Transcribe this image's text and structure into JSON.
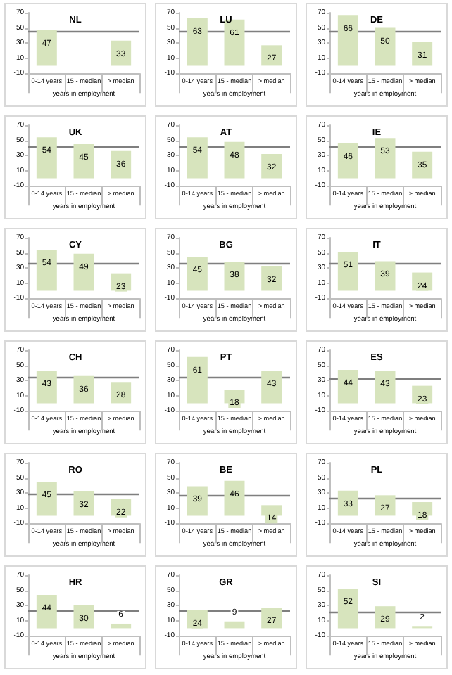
{
  "chart_data": [
    {
      "type": "bar",
      "title": "NL",
      "xlabel": "years in employment",
      "categories": [
        "0-14 years",
        "15 - median",
        "> median"
      ],
      "values": [
        47,
        null,
        33
      ],
      "color": "#d7e4bd",
      "ylim": [
        -10,
        70
      ],
      "yticks": [
        -10,
        10,
        30,
        50,
        70
      ],
      "data_labels": true,
      "ref_lines": [
        {
          "axis": "y",
          "value": 45,
          "color": "#7f7f7f"
        }
      ]
    },
    {
      "type": "bar",
      "title": "LU",
      "xlabel": "years in employment",
      "categories": [
        "0-14 years",
        "15 - median",
        "> median"
      ],
      "values": [
        63,
        61,
        27
      ],
      "color": "#d7e4bd",
      "ylim": [
        -10,
        70
      ],
      "yticks": [
        -10,
        10,
        30,
        50,
        70
      ],
      "data_labels": true,
      "ref_lines": [
        {
          "axis": "y",
          "value": 45,
          "color": "#7f7f7f"
        }
      ]
    },
    {
      "type": "bar",
      "title": "DE",
      "xlabel": "years in employment",
      "categories": [
        "0-14 years",
        "15 - median",
        "> median"
      ],
      "values": [
        66,
        50,
        31
      ],
      "color": "#d7e4bd",
      "ylim": [
        -10,
        70
      ],
      "yticks": [
        -10,
        10,
        30,
        50,
        70
      ],
      "data_labels": true,
      "ref_lines": [
        {
          "axis": "y",
          "value": 45,
          "color": "#7f7f7f"
        }
      ]
    },
    {
      "type": "bar",
      "title": "UK",
      "xlabel": "years in employment",
      "categories": [
        "0-14 years",
        "15 - median",
        "> median"
      ],
      "values": [
        54,
        45,
        36
      ],
      "color": "#d7e4bd",
      "ylim": [
        -10,
        70
      ],
      "yticks": [
        -10,
        10,
        30,
        50,
        70
      ],
      "data_labels": true,
      "ref_lines": [
        {
          "axis": "y",
          "value": 42,
          "color": "#7f7f7f"
        }
      ]
    },
    {
      "type": "bar",
      "title": "AT",
      "xlabel": "years in employment",
      "categories": [
        "0-14 years",
        "15 - median",
        "> median"
      ],
      "values": [
        54,
        48,
        32
      ],
      "color": "#d7e4bd",
      "ylim": [
        -10,
        70
      ],
      "yticks": [
        -10,
        10,
        30,
        50,
        70
      ],
      "data_labels": true,
      "ref_lines": [
        {
          "axis": "y",
          "value": 42,
          "color": "#7f7f7f"
        }
      ]
    },
    {
      "type": "bar",
      "title": "IE",
      "xlabel": "years in employment",
      "categories": [
        "0-14 years",
        "15 - median",
        "> median"
      ],
      "values": [
        46,
        53,
        35
      ],
      "color": "#d7e4bd",
      "ylim": [
        -10,
        70
      ],
      "yticks": [
        -10,
        10,
        30,
        50,
        70
      ],
      "data_labels": true,
      "ref_lines": [
        {
          "axis": "y",
          "value": 42,
          "color": "#7f7f7f"
        }
      ]
    },
    {
      "type": "bar",
      "title": "CY",
      "xlabel": "years in employment",
      "categories": [
        "0-14 years",
        "15 - median",
        "> median"
      ],
      "values": [
        54,
        49,
        23
      ],
      "color": "#d7e4bd",
      "ylim": [
        -10,
        70
      ],
      "yticks": [
        -10,
        10,
        30,
        50,
        70
      ],
      "data_labels": true,
      "ref_lines": [
        {
          "axis": "y",
          "value": 37,
          "color": "#7f7f7f"
        }
      ]
    },
    {
      "type": "bar",
      "title": "BG",
      "xlabel": "years in employment",
      "categories": [
        "0-14 years",
        "15 - median",
        "> median"
      ],
      "values": [
        45,
        38,
        32
      ],
      "color": "#d7e4bd",
      "ylim": [
        -10,
        70
      ],
      "yticks": [
        -10,
        10,
        30,
        50,
        70
      ],
      "data_labels": true,
      "ref_lines": [
        {
          "axis": "y",
          "value": 36,
          "color": "#7f7f7f"
        }
      ]
    },
    {
      "type": "bar",
      "title": "IT",
      "xlabel": "years in employment",
      "categories": [
        "0-14 years",
        "15 - median",
        "> median"
      ],
      "values": [
        51,
        39,
        24
      ],
      "color": "#d7e4bd",
      "ylim": [
        -10,
        70
      ],
      "yticks": [
        -10,
        10,
        30,
        50,
        70
      ],
      "data_labels": true,
      "ref_lines": [
        {
          "axis": "y",
          "value": 36,
          "color": "#7f7f7f"
        }
      ]
    },
    {
      "type": "bar",
      "title": "CH",
      "xlabel": "years in employment",
      "categories": [
        "0-14 years",
        "15 - median",
        "> median"
      ],
      "values": [
        43,
        36,
        28
      ],
      "color": "#d7e4bd",
      "ylim": [
        -10,
        70
      ],
      "yticks": [
        -10,
        10,
        30,
        50,
        70
      ],
      "data_labels": true,
      "ref_lines": [
        {
          "axis": "y",
          "value": 34,
          "color": "#7f7f7f"
        }
      ]
    },
    {
      "type": "bar",
      "title": "PT",
      "xlabel": "years in employment",
      "categories": [
        "0-14 years",
        "15 - median",
        "> median"
      ],
      "values": [
        61,
        18,
        43
      ],
      "color": "#d7e4bd",
      "ylim": [
        -10,
        70
      ],
      "yticks": [
        -10,
        10,
        30,
        50,
        70
      ],
      "data_labels": true,
      "ref_lines": [
        {
          "axis": "y",
          "value": 34,
          "color": "#7f7f7f"
        }
      ]
    },
    {
      "type": "bar",
      "title": "ES",
      "xlabel": "years in employment",
      "categories": [
        "0-14 years",
        "15 - median",
        "> median"
      ],
      "values": [
        44,
        43,
        23
      ],
      "color": "#d7e4bd",
      "ylim": [
        -10,
        70
      ],
      "yticks": [
        -10,
        10,
        30,
        50,
        70
      ],
      "data_labels": true,
      "ref_lines": [
        {
          "axis": "y",
          "value": 33,
          "color": "#7f7f7f"
        }
      ]
    },
    {
      "type": "bar",
      "title": "RO",
      "xlabel": "years in employment",
      "categories": [
        "0-14 years",
        "15 - median",
        "> median"
      ],
      "values": [
        45,
        32,
        22
      ],
      "color": "#d7e4bd",
      "ylim": [
        -10,
        70
      ],
      "yticks": [
        -10,
        10,
        30,
        50,
        70
      ],
      "data_labels": true,
      "ref_lines": [
        {
          "axis": "y",
          "value": 29,
          "color": "#7f7f7f"
        }
      ]
    },
    {
      "type": "bar",
      "title": "BE",
      "xlabel": "years in employment",
      "categories": [
        "0-14 years",
        "15 - median",
        "> median"
      ],
      "values": [
        39,
        46,
        14
      ],
      "color": "#d7e4bd",
      "ylim": [
        -10,
        70
      ],
      "yticks": [
        -10,
        10,
        30,
        50,
        70
      ],
      "data_labels": true,
      "ref_lines": [
        {
          "axis": "y",
          "value": 27,
          "color": "#7f7f7f"
        }
      ]
    },
    {
      "type": "bar",
      "title": "PL",
      "xlabel": "years in employment",
      "categories": [
        "0-14 years",
        "15 - median",
        "> median"
      ],
      "values": [
        33,
        27,
        18
      ],
      "color": "#d7e4bd",
      "ylim": [
        -10,
        70
      ],
      "yticks": [
        -10,
        10,
        30,
        50,
        70
      ],
      "data_labels": true,
      "ref_lines": [
        {
          "axis": "y",
          "value": 24,
          "color": "#7f7f7f"
        }
      ]
    },
    {
      "type": "bar",
      "title": "HR",
      "xlabel": "years in employment",
      "categories": [
        "0-14 years",
        "15 - median",
        "> median"
      ],
      "values": [
        44,
        30,
        6
      ],
      "color": "#d7e4bd",
      "ylim": [
        -10,
        70
      ],
      "yticks": [
        -10,
        10,
        30,
        50,
        70
      ],
      "data_labels": true,
      "ref_lines": [
        {
          "axis": "y",
          "value": 24,
          "color": "#7f7f7f"
        }
      ]
    },
    {
      "type": "bar",
      "title": "GR",
      "xlabel": "years in employment",
      "categories": [
        "0-14 years",
        "15 - median",
        "> median"
      ],
      "values": [
        24,
        9,
        27
      ],
      "color": "#d7e4bd",
      "ylim": [
        -10,
        70
      ],
      "yticks": [
        -10,
        10,
        30,
        50,
        70
      ],
      "data_labels": true,
      "ref_lines": [
        {
          "axis": "y",
          "value": 23,
          "color": "#7f7f7f"
        }
      ]
    },
    {
      "type": "bar",
      "title": "SI",
      "xlabel": "years in employment",
      "categories": [
        "0-14 years",
        "15 - median",
        "> median"
      ],
      "values": [
        52,
        29,
        2
      ],
      "color": "#d7e4bd",
      "ylim": [
        -10,
        70
      ],
      "yticks": [
        -10,
        10,
        30,
        50,
        70
      ],
      "data_labels": true,
      "ref_lines": [
        {
          "axis": "y",
          "value": 22,
          "color": "#7f7f7f"
        }
      ]
    }
  ]
}
